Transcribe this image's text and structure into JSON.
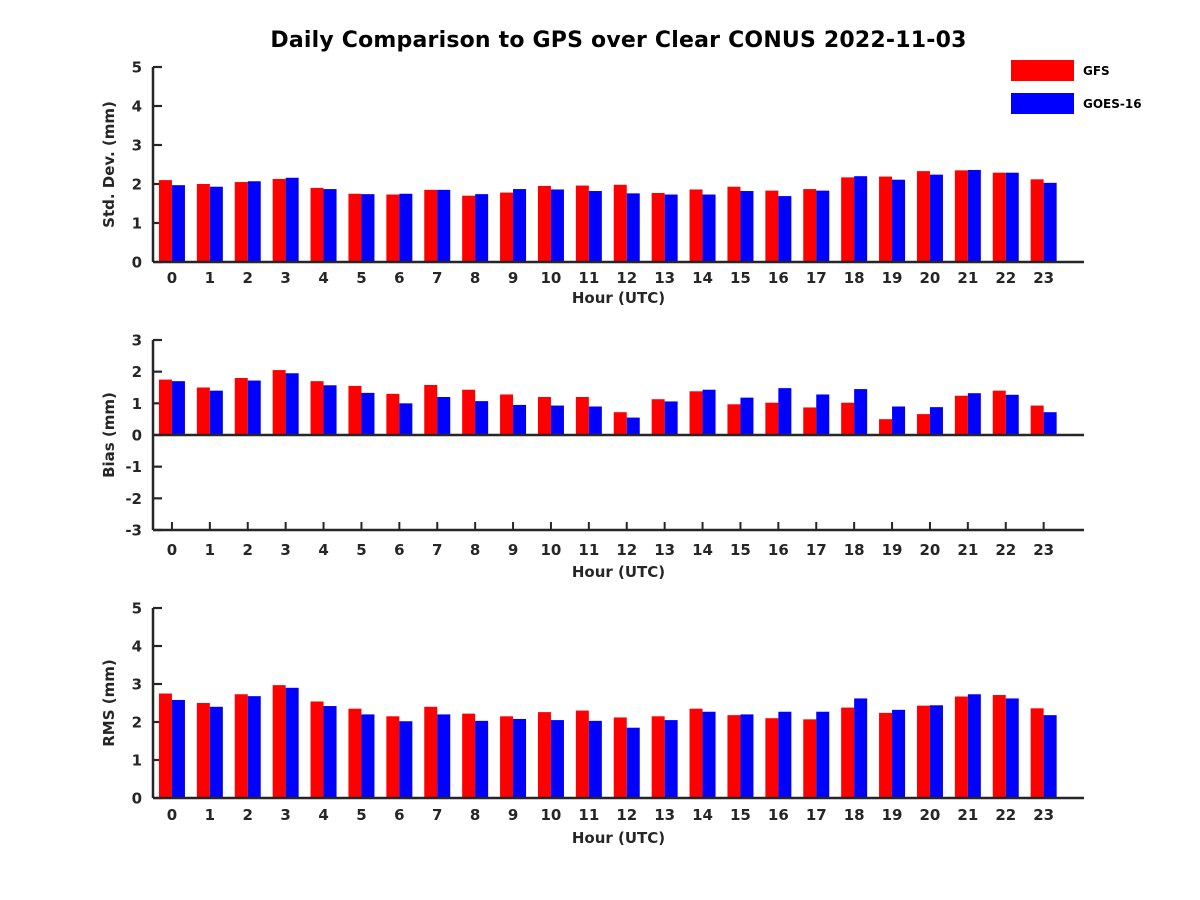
{
  "title": "Daily Comparison to GPS over Clear CONUS 2022-11-03",
  "legend": [
    {
      "label": "GFS",
      "color": "#ff0000"
    },
    {
      "label": "GOES-16",
      "color": "#0000ff"
    }
  ],
  "legend_position": "top-right",
  "colors": {
    "gfs": "#ff0000",
    "goes16": "#0000ff",
    "axis": "#262626",
    "title": "#000000"
  },
  "chart_data": [
    {
      "id": "stddev",
      "type": "bar",
      "title": "",
      "ylabel": "Std. Dev. (mm)",
      "xlabel": "Hour (UTC)",
      "ylim": [
        0,
        5
      ],
      "yticks": [
        0,
        1,
        2,
        3,
        4,
        5
      ],
      "grid": false,
      "categories": [
        "0",
        "1",
        "2",
        "3",
        "4",
        "5",
        "6",
        "7",
        "8",
        "9",
        "10",
        "11",
        "12",
        "13",
        "14",
        "15",
        "16",
        "17",
        "18",
        "19",
        "20",
        "21",
        "22",
        "23"
      ],
      "series": [
        {
          "name": "GFS",
          "color": "#ff0000",
          "values": [
            2.1,
            2.0,
            2.05,
            2.13,
            1.9,
            1.75,
            1.73,
            1.85,
            1.7,
            1.78,
            1.95,
            1.96,
            1.98,
            1.77,
            1.86,
            1.93,
            1.83,
            1.87,
            2.17,
            2.19,
            2.33,
            2.35,
            2.29,
            2.12
          ]
        },
        {
          "name": "GOES-16",
          "color": "#0000ff",
          "values": [
            1.97,
            1.93,
            2.07,
            2.16,
            1.87,
            1.74,
            1.75,
            1.85,
            1.74,
            1.87,
            1.86,
            1.82,
            1.76,
            1.73,
            1.73,
            1.82,
            1.69,
            1.83,
            2.2,
            2.11,
            2.24,
            2.36,
            2.29,
            2.03
          ]
        }
      ]
    },
    {
      "id": "bias",
      "type": "bar",
      "title": "",
      "ylabel": "Bias (mm)",
      "xlabel": "Hour (UTC)",
      "ylim": [
        -3,
        3
      ],
      "yticks": [
        -3,
        -2,
        -1,
        0,
        1,
        2,
        3
      ],
      "grid": false,
      "categories": [
        "0",
        "1",
        "2",
        "3",
        "4",
        "5",
        "6",
        "7",
        "8",
        "9",
        "10",
        "11",
        "12",
        "13",
        "14",
        "15",
        "16",
        "17",
        "18",
        "19",
        "20",
        "21",
        "22",
        "23"
      ],
      "series": [
        {
          "name": "GFS",
          "color": "#ff0000",
          "values": [
            1.75,
            1.5,
            1.8,
            2.05,
            1.7,
            1.55,
            1.3,
            1.58,
            1.43,
            1.28,
            1.2,
            1.2,
            0.72,
            1.13,
            1.38,
            0.97,
            1.02,
            0.87,
            1.02,
            0.5,
            0.66,
            1.24,
            1.4,
            0.93
          ]
        },
        {
          "name": "GOES-16",
          "color": "#0000ff",
          "values": [
            1.7,
            1.4,
            1.72,
            1.95,
            1.57,
            1.33,
            1.0,
            1.2,
            1.07,
            0.95,
            0.93,
            0.9,
            0.55,
            1.06,
            1.43,
            1.18,
            1.48,
            1.28,
            1.45,
            0.9,
            0.88,
            1.32,
            1.27,
            0.72
          ]
        }
      ]
    },
    {
      "id": "rms",
      "type": "bar",
      "title": "",
      "ylabel": "RMS (mm)",
      "xlabel": "Hour (UTC)",
      "ylim": [
        0,
        5
      ],
      "yticks": [
        0,
        1,
        2,
        3,
        4,
        5
      ],
      "grid": false,
      "categories": [
        "0",
        "1",
        "2",
        "3",
        "4",
        "5",
        "6",
        "7",
        "8",
        "9",
        "10",
        "11",
        "12",
        "13",
        "14",
        "15",
        "16",
        "17",
        "18",
        "19",
        "20",
        "21",
        "22",
        "23"
      ],
      "series": [
        {
          "name": "GFS",
          "color": "#ff0000",
          "values": [
            2.75,
            2.5,
            2.73,
            2.97,
            2.54,
            2.35,
            2.15,
            2.4,
            2.22,
            2.15,
            2.26,
            2.3,
            2.12,
            2.15,
            2.35,
            2.18,
            2.1,
            2.07,
            2.38,
            2.24,
            2.43,
            2.67,
            2.71,
            2.36
          ]
        },
        {
          "name": "GOES-16",
          "color": "#0000ff",
          "values": [
            2.58,
            2.4,
            2.68,
            2.9,
            2.42,
            2.2,
            2.02,
            2.2,
            2.03,
            2.08,
            2.05,
            2.03,
            1.85,
            2.05,
            2.27,
            2.2,
            2.27,
            2.27,
            2.62,
            2.32,
            2.44,
            2.73,
            2.62,
            2.18
          ]
        }
      ]
    }
  ]
}
